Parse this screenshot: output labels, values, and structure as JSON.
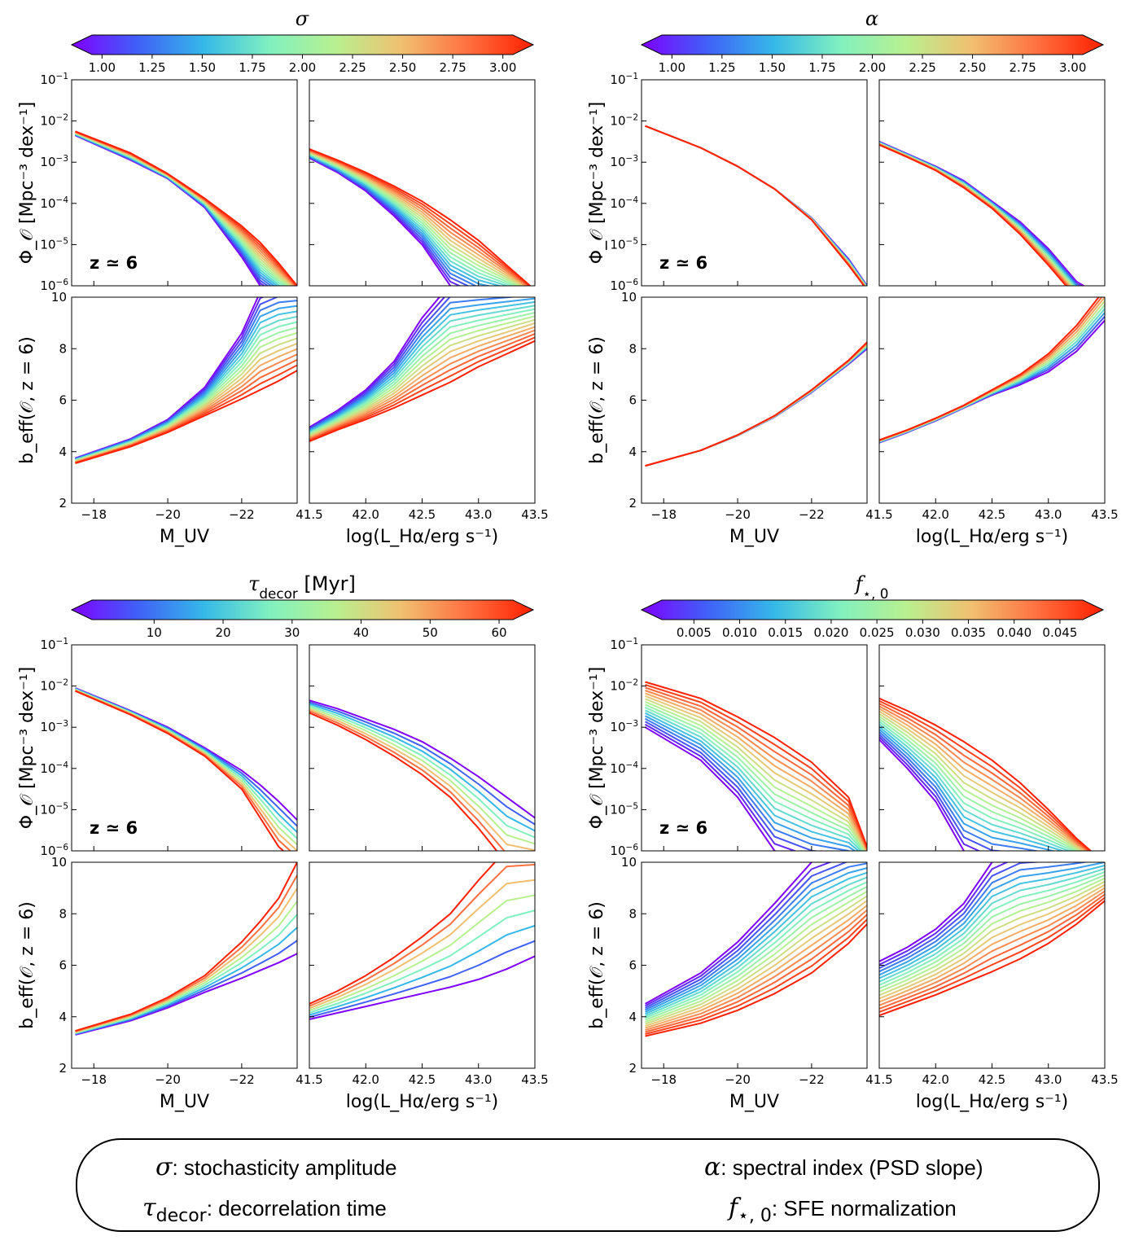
{
  "colormap": [
    "#7f00ff",
    "#4060f8",
    "#35b8e8",
    "#80f0c0",
    "#b8f090",
    "#f0c070",
    "#ff7040",
    "#ff2000"
  ],
  "panel_labels": {
    "phi_ylabel": "Φ_𝒪 [Mpc⁻³ dex⁻¹]",
    "b_ylabel": "b_eff(𝒪, z = 6)",
    "muv_xlabel": "M_UV",
    "lha_xlabel": "log(L_Hα/erg s⁻¹)",
    "z_label": "z ≃ 6"
  },
  "legend": {
    "sigma_sym": "σ",
    "sigma_text": ": stochasticity amplitude",
    "alpha_sym": "α",
    "alpha_text": ": spectral index (PSD slope)",
    "tau_sym": "τ",
    "tau_sub": "decor",
    "tau_text": ": decorrelation time",
    "f_sym": "f",
    "f_sub": "⋆, 0",
    "f_text": ": SFE normalization"
  },
  "chart_data": [
    {
      "id": "sigma",
      "type": "line",
      "colorbar": {
        "title": "σ",
        "title_sub": "",
        "title_suffix": "",
        "range": [
          0.95,
          3.05
        ],
        "ticks": [
          "1.00",
          "1.25",
          "1.50",
          "1.75",
          "2.00",
          "2.25",
          "2.50",
          "2.75",
          "3.00"
        ]
      },
      "n_curves": 17,
      "muv": {
        "x": [
          -17.5,
          -19,
          -20,
          -21,
          -22,
          -22.5,
          -23,
          -23.5
        ],
        "phi_low": [
          -2.35,
          -2.95,
          -3.4,
          -4.1,
          -5.3,
          -6.0,
          -6.3,
          -6.3
        ],
        "phi_high": [
          -2.25,
          -2.78,
          -3.28,
          -3.88,
          -4.55,
          -4.95,
          -5.45,
          -6.0
        ],
        "b_low": [
          3.75,
          4.5,
          5.25,
          6.5,
          8.6,
          10.2,
          10.5,
          10.5
        ],
        "b_high": [
          3.55,
          4.2,
          4.75,
          5.4,
          6.05,
          6.4,
          6.75,
          7.15
        ]
      },
      "lha": {
        "x": [
          41.5,
          41.75,
          42,
          42.25,
          42.5,
          42.75,
          43,
          43.25,
          43.5
        ],
        "phi_low": [
          -2.9,
          -3.25,
          -3.7,
          -4.3,
          -5.0,
          -6.0,
          -6.3,
          -6.3,
          -6.3
        ],
        "phi_high": [
          -2.68,
          -2.95,
          -3.25,
          -3.58,
          -3.95,
          -4.4,
          -4.9,
          -5.5,
          -6.1
        ],
        "b_low": [
          4.95,
          5.6,
          6.4,
          7.5,
          9.2,
          10.5,
          10.5,
          10.5,
          10.5
        ],
        "b_high": [
          4.4,
          4.85,
          5.25,
          5.7,
          6.2,
          6.7,
          7.3,
          7.8,
          8.3
        ]
      },
      "show_z": true
    },
    {
      "id": "alpha",
      "type": "line",
      "colorbar": {
        "title": "α",
        "title_sub": "",
        "title_suffix": "",
        "range": [
          0.95,
          3.05
        ],
        "ticks": [
          "1.00",
          "1.25",
          "1.50",
          "1.75",
          "2.00",
          "2.25",
          "2.50",
          "2.75",
          "3.00"
        ]
      },
      "n_curves": 9,
      "muv": {
        "x": [
          -17.5,
          -19,
          -20,
          -21,
          -22,
          -23,
          -23.5
        ],
        "phi_low": [
          -2.12,
          -2.65,
          -3.1,
          -3.65,
          -4.35,
          -5.35,
          -6.0
        ],
        "phi_high": [
          -2.12,
          -2.65,
          -3.1,
          -3.65,
          -4.4,
          -5.5,
          -6.1
        ],
        "b_low": [
          3.45,
          4.05,
          4.62,
          5.35,
          6.3,
          7.4,
          8.0
        ],
        "b_high": [
          3.45,
          4.05,
          4.65,
          5.4,
          6.4,
          7.55,
          8.25
        ]
      },
      "lha": {
        "x": [
          41.5,
          41.75,
          42,
          42.25,
          42.5,
          42.75,
          43,
          43.25,
          43.5
        ],
        "phi_low": [
          -2.5,
          -2.8,
          -3.1,
          -3.45,
          -3.95,
          -4.45,
          -5.1,
          -5.9,
          -6.3
        ],
        "phi_high": [
          -2.58,
          -2.88,
          -3.2,
          -3.62,
          -4.12,
          -4.75,
          -5.5,
          -6.3,
          -6.3
        ],
        "b_low": [
          4.35,
          4.75,
          5.2,
          5.7,
          6.2,
          6.6,
          7.1,
          7.9,
          9.1
        ],
        "b_high": [
          4.45,
          4.85,
          5.3,
          5.8,
          6.4,
          7.0,
          7.8,
          8.9,
          10.3
        ]
      },
      "show_z": true
    },
    {
      "id": "tau",
      "type": "line",
      "colorbar": {
        "title": "τ",
        "title_sub": "decor",
        "title_suffix": " [Myr]",
        "range": [
          1,
          62
        ],
        "ticks": [
          "10",
          "20",
          "30",
          "40",
          "50",
          "60"
        ]
      },
      "n_curves": 8,
      "muv": {
        "x": [
          -17.5,
          -19,
          -20,
          -21,
          -22,
          -22.5,
          -23,
          -23.5
        ],
        "phi_low": [
          -2.05,
          -2.6,
          -3.0,
          -3.5,
          -4.05,
          -4.4,
          -4.8,
          -5.25
        ],
        "phi_high": [
          -2.12,
          -2.7,
          -3.15,
          -3.7,
          -4.5,
          -5.2,
          -5.9,
          -6.3
        ],
        "b_low": [
          3.3,
          3.85,
          4.35,
          4.95,
          5.5,
          5.8,
          6.1,
          6.45
        ],
        "b_high": [
          3.45,
          4.1,
          4.75,
          5.6,
          6.9,
          7.7,
          8.6,
          10.0
        ]
      },
      "lha": {
        "x": [
          41.5,
          41.75,
          42,
          42.25,
          42.5,
          42.75,
          43,
          43.25,
          43.5
        ],
        "phi_low": [
          -2.35,
          -2.55,
          -2.8,
          -3.05,
          -3.35,
          -3.75,
          -4.2,
          -4.7,
          -5.2
        ],
        "phi_high": [
          -2.65,
          -2.95,
          -3.3,
          -3.7,
          -4.15,
          -4.7,
          -5.45,
          -6.3,
          -6.3
        ],
        "b_low": [
          3.9,
          4.15,
          4.4,
          4.65,
          4.9,
          5.15,
          5.45,
          5.85,
          6.35
        ],
        "b_high": [
          4.5,
          5.0,
          5.6,
          6.3,
          7.1,
          8.0,
          9.3,
          10.5,
          10.5
        ]
      },
      "show_z": true
    },
    {
      "id": "fstar",
      "type": "line",
      "colorbar": {
        "title": "f",
        "title_sub": "⋆, 0",
        "title_suffix": "",
        "range": [
          0.0015,
          0.0475
        ],
        "ticks": [
          "0.005",
          "0.010",
          "0.015",
          "0.020",
          "0.025",
          "0.030",
          "0.035",
          "0.040",
          "0.045"
        ]
      },
      "n_curves": 17,
      "muv": {
        "x": [
          -17.5,
          -19,
          -20,
          -21,
          -22,
          -23,
          -23.5
        ],
        "phi_low": [
          -3.0,
          -3.8,
          -4.7,
          -6.0,
          -6.3,
          -6.3,
          -6.3
        ],
        "phi_high": [
          -1.9,
          -2.3,
          -2.75,
          -3.25,
          -3.85,
          -4.7,
          -5.9
        ],
        "b_low": [
          4.5,
          5.7,
          6.9,
          8.4,
          10.0,
          10.5,
          10.5
        ],
        "b_high": [
          3.25,
          3.75,
          4.25,
          4.9,
          5.7,
          6.85,
          7.6
        ]
      },
      "lha": {
        "x": [
          41.5,
          41.75,
          42,
          42.25,
          42.5,
          42.75,
          43,
          43.25,
          43.5
        ],
        "phi_low": [
          -3.3,
          -4.0,
          -4.8,
          -6.0,
          -6.3,
          -6.3,
          -6.3,
          -6.3,
          -6.3
        ],
        "phi_high": [
          -2.3,
          -2.6,
          -2.95,
          -3.35,
          -3.8,
          -4.35,
          -5.0,
          -5.7,
          -6.3
        ],
        "b_low": [
          6.15,
          6.7,
          7.4,
          8.4,
          10.0,
          10.5,
          10.5,
          10.5,
          10.5
        ],
        "b_high": [
          4.05,
          4.45,
          4.85,
          5.3,
          5.75,
          6.25,
          6.85,
          7.6,
          8.5
        ]
      },
      "show_z": true
    }
  ]
}
